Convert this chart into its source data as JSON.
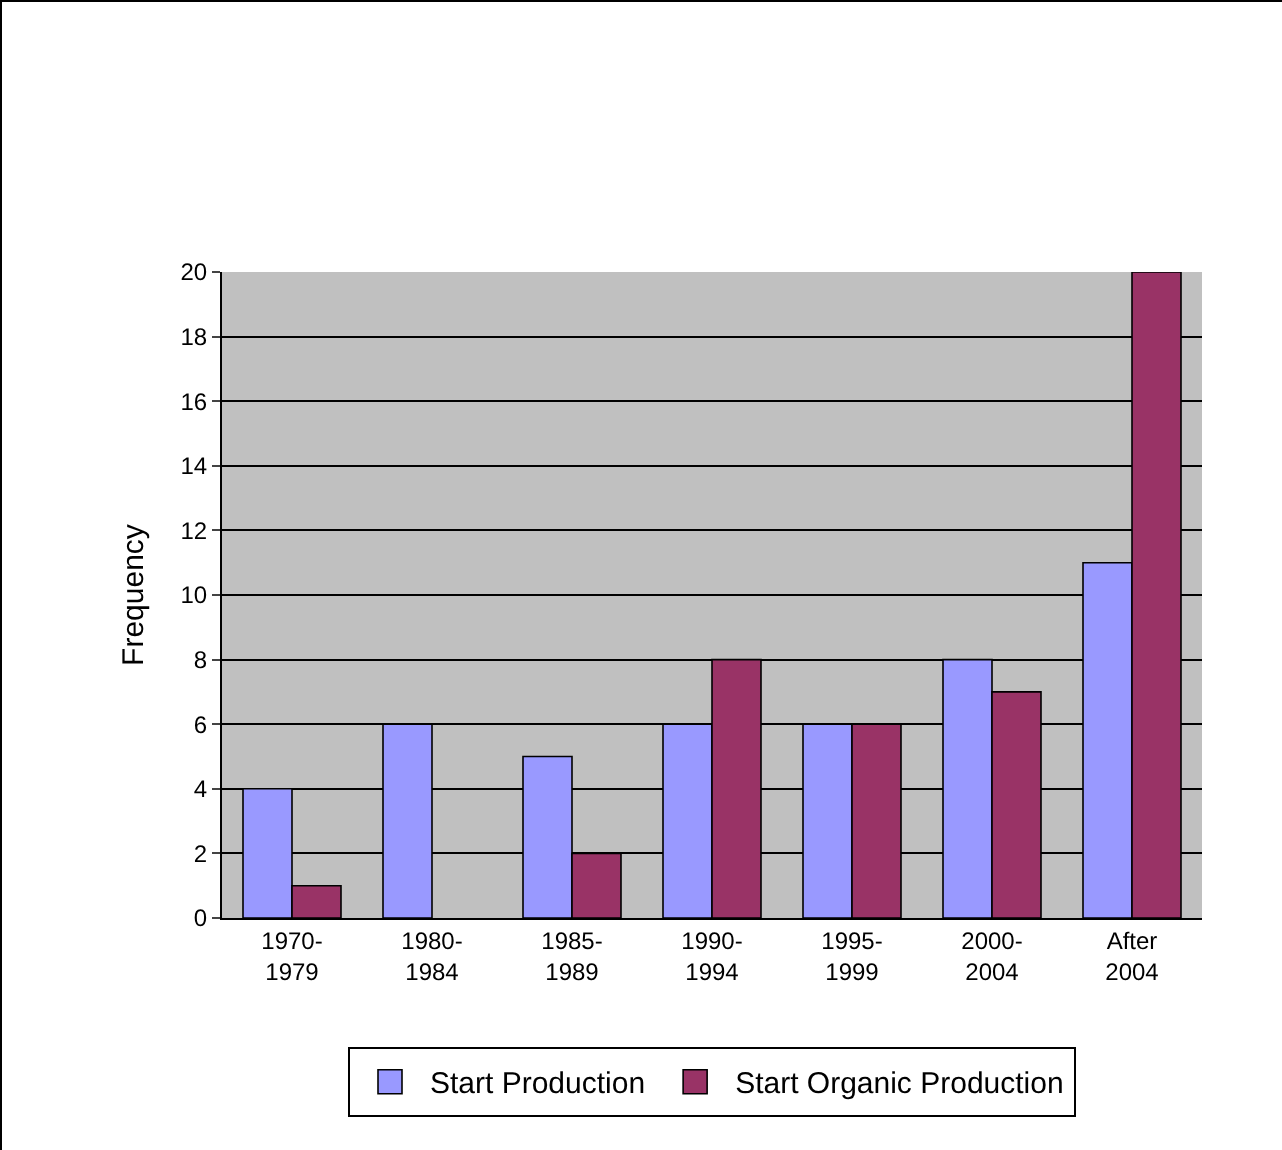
{
  "chart_data": {
    "type": "bar",
    "ylabel": "Frequency",
    "categories": [
      "1970-1979",
      "1980-1984",
      "1985-1989",
      "1990-1994",
      "1995-1999",
      "2000-2004",
      "After 2004"
    ],
    "series": [
      {
        "name": "Start Production",
        "color": "#9999ff",
        "values": [
          4,
          6,
          5,
          6,
          6,
          8,
          11
        ]
      },
      {
        "name": "Start Organic Production",
        "color": "#993366",
        "values": [
          1,
          0,
          2,
          8,
          6,
          7,
          20
        ]
      }
    ],
    "ylim": [
      0,
      20
    ],
    "yticks": [
      0,
      2,
      4,
      6,
      8,
      10,
      12,
      14,
      16,
      18,
      20
    ],
    "grid": "y",
    "legend": "bottom"
  }
}
